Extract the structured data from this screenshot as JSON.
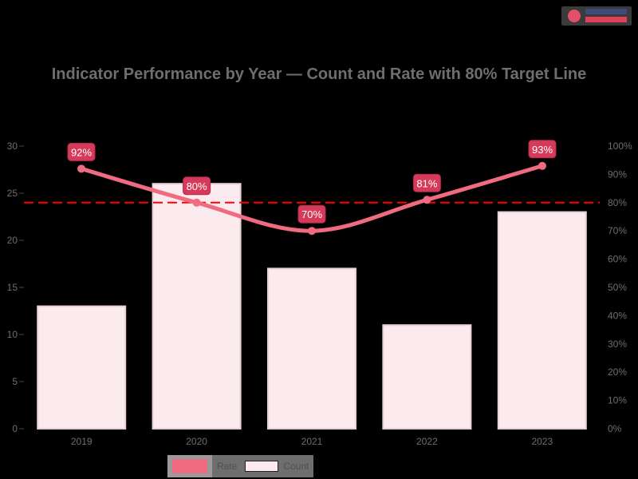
{
  "logo": {
    "name": "logo"
  },
  "chart_data": {
    "type": "bar",
    "title": "Indicator Performance by Year — Count and Rate with 80% Target Line",
    "categories": [
      "2019",
      "2020",
      "2021",
      "2022",
      "2023"
    ],
    "series": [
      {
        "name": "Count",
        "type": "bar",
        "axis": "left",
        "color": "#fbeaee",
        "values": [
          13,
          26,
          17,
          11,
          23
        ]
      },
      {
        "name": "Rate",
        "type": "line",
        "axis": "right",
        "color": "#f06a80",
        "values": [
          92,
          80,
          70,
          81,
          93
        ],
        "labels": [
          "92%",
          "80%",
          "70%",
          "81%",
          "93%"
        ]
      }
    ],
    "reference_line": {
      "value": 80,
      "axis": "right",
      "style": "dashed",
      "color": "#ff0000"
    },
    "left_axis": {
      "ticks": [
        "0",
        "5",
        "10",
        "15",
        "20",
        "25",
        "30"
      ],
      "ylim": [
        0,
        30
      ]
    },
    "right_axis": {
      "ticks": [
        "0%",
        "10%",
        "20%",
        "30%",
        "40%",
        "50%",
        "60%",
        "70%",
        "80%",
        "90%",
        "100%"
      ],
      "ylim": [
        0,
        100
      ]
    },
    "legend": [
      "Rate",
      "Count"
    ],
    "legend_position": "bottom",
    "grid": false
  }
}
